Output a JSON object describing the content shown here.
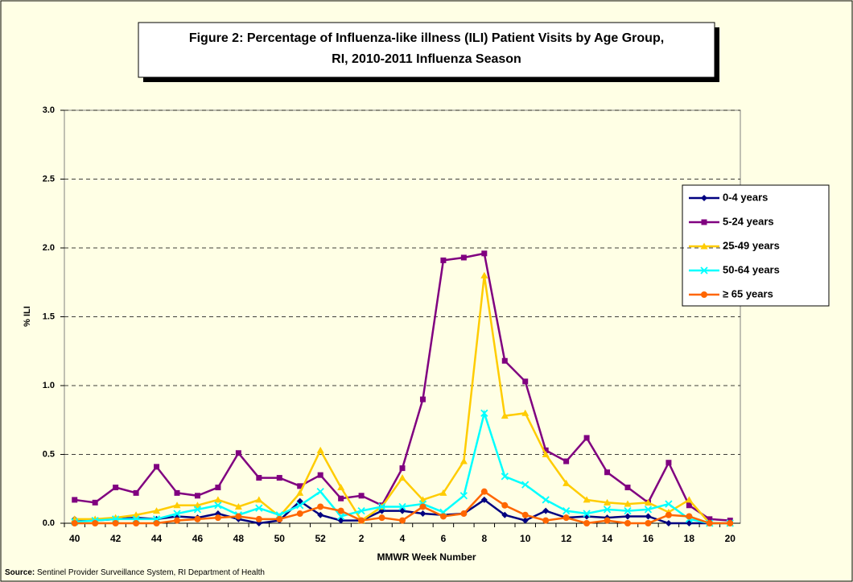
{
  "chart_data": {
    "type": "line",
    "title": [
      "Figure 2: Percentage of Influenza-like illness (ILI) Patient Visits by Age  Group,",
      "RI, 2010-2011 Influenza Season"
    ],
    "x_label": "MMWR Week Number",
    "y_label": "% ILI",
    "source_label": "Source:",
    "source": "Sentinel Provider Surveillance System, RI Department of Health",
    "categories": [
      "40",
      null,
      "42",
      null,
      "44",
      null,
      "46",
      null,
      "48",
      null,
      "50",
      null,
      "52",
      null,
      "2",
      null,
      "4",
      null,
      "6",
      null,
      "8",
      null,
      "10",
      null,
      "12",
      null,
      "14",
      null,
      "16",
      null,
      "18",
      null,
      "20"
    ],
    "ylim": [
      0,
      3
    ],
    "yticks": [
      {
        "value": 0,
        "label": "0.0"
      },
      {
        "value": 0.5,
        "label": "0.5"
      },
      {
        "value": 1,
        "label": "1.0"
      },
      {
        "value": 1.5,
        "label": "1.5"
      },
      {
        "value": 2,
        "label": "2.0"
      },
      {
        "value": 2.5,
        "label": "2.5"
      },
      {
        "value": 3,
        "label": "3.0"
      }
    ],
    "grid": true,
    "legend": "right",
    "series": [
      {
        "name": "0-4 years",
        "color": "#000080",
        "marker": "diamond",
        "values": [
          0.03,
          0.02,
          0.03,
          0.04,
          0.03,
          0.05,
          0.04,
          0.07,
          0.03,
          0.0,
          0.02,
          0.16,
          0.06,
          0.02,
          0.02,
          0.09,
          0.09,
          0.07,
          0.06,
          0.07,
          0.17,
          0.06,
          0.02,
          0.09,
          0.04,
          0.05,
          0.04,
          0.05,
          0.05,
          0.0,
          0.0,
          0.0,
          0.0
        ]
      },
      {
        "name": "5-24 years",
        "color": "#800080",
        "marker": "square",
        "values": [
          0.17,
          0.15,
          0.26,
          0.22,
          0.41,
          0.22,
          0.2,
          0.26,
          0.51,
          0.33,
          0.33,
          0.27,
          0.35,
          0.18,
          0.2,
          0.13,
          0.4,
          0.9,
          1.91,
          1.93,
          1.96,
          1.18,
          1.03,
          0.53,
          0.45,
          0.62,
          0.37,
          0.26,
          0.15,
          0.44,
          0.13,
          0.03,
          0.02
        ]
      },
      {
        "name": "25-49 years",
        "color": "#ffcc00",
        "marker": "triangle",
        "values": [
          0.03,
          0.03,
          0.04,
          0.06,
          0.09,
          0.13,
          0.13,
          0.17,
          0.12,
          0.17,
          0.05,
          0.22,
          0.53,
          0.26,
          0.02,
          0.12,
          0.33,
          0.17,
          0.22,
          0.45,
          1.8,
          0.78,
          0.8,
          0.5,
          0.29,
          0.17,
          0.15,
          0.14,
          0.15,
          0.08,
          0.17,
          0.0,
          0.0
        ]
      },
      {
        "name": "50-64 years",
        "color": "#00ffff",
        "marker": "x",
        "values": [
          0.01,
          0.02,
          0.03,
          0.03,
          0.03,
          0.07,
          0.1,
          0.13,
          0.06,
          0.11,
          0.06,
          0.13,
          0.23,
          0.05,
          0.09,
          0.12,
          0.12,
          0.14,
          0.08,
          0.2,
          0.8,
          0.34,
          0.28,
          0.17,
          0.09,
          0.07,
          0.1,
          0.09,
          0.1,
          0.14,
          0.03,
          0.0,
          0.0
        ]
      },
      {
        "name": "≥ 65 years",
        "color": "#ff6600",
        "marker": "circle",
        "values": [
          0.0,
          0.0,
          0.0,
          0.0,
          0.0,
          0.02,
          0.03,
          0.04,
          0.05,
          0.03,
          0.03,
          0.07,
          0.12,
          0.09,
          0.02,
          0.04,
          0.02,
          0.12,
          0.05,
          0.07,
          0.23,
          0.13,
          0.06,
          0.02,
          0.04,
          0.0,
          0.02,
          0.0,
          0.0,
          0.06,
          0.05,
          0.0,
          0.0
        ]
      }
    ]
  }
}
